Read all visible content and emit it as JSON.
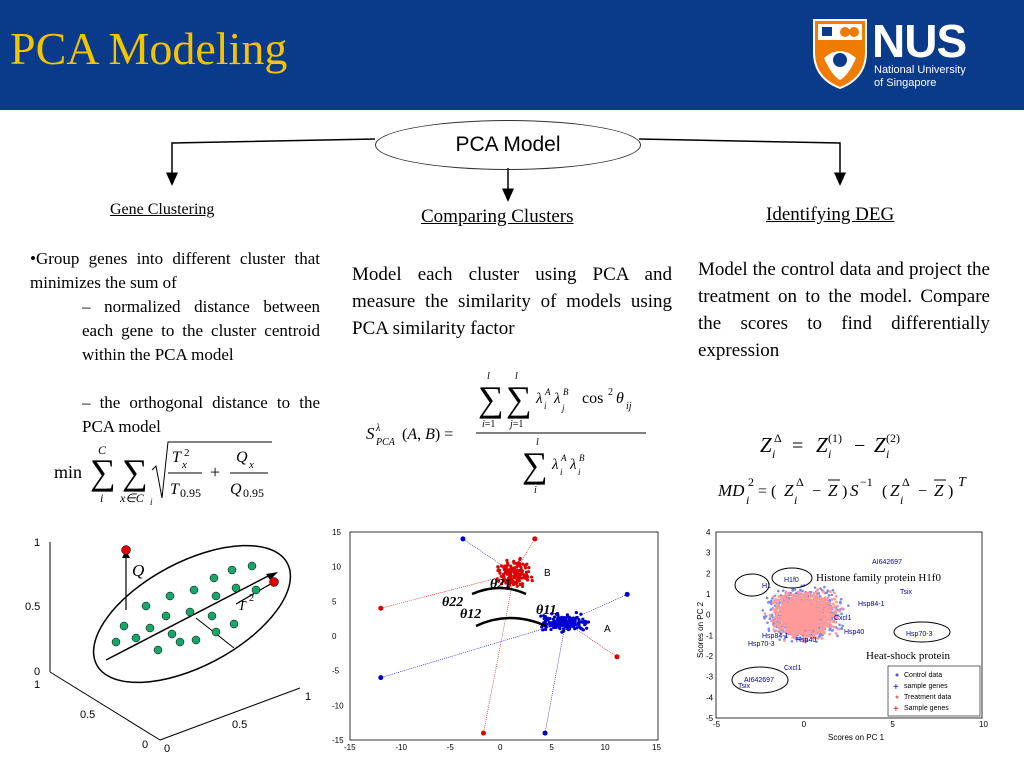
{
  "slide": {
    "title": "PCA Modeling",
    "logo": {
      "name": "NUS",
      "line1": "National University",
      "line2": "of Singapore"
    }
  },
  "center": {
    "label": "PCA Model"
  },
  "gene_clustering": {
    "heading": "Gene Clustering",
    "bullet": "•Group genes into different cluster that minimizes the sum of",
    "sub1": "– normalized distance between each gene to the cluster centroid within the PCA model",
    "sub2": "– the orthogonal distance to the PCA model"
  },
  "comparing_clusters": {
    "heading": "Comparing Clusters",
    "body": "Model each cluster using PCA and measure the similarity of models using PCA similarity factor"
  },
  "identifying_deg": {
    "heading": "Identifying DEG",
    "body": "Model the control data and project the treatment on to the model. Compare the scores to find differentially expression"
  },
  "left_plot": {
    "y_ticks": [
      "1",
      "0.5",
      "0"
    ],
    "x_ticks": [
      "1",
      "0.5",
      "0"
    ],
    "z_ticks": [
      "1",
      "0.5",
      "0"
    ],
    "q_label": "Q",
    "t_label": "T",
    "t_sup": "2"
  },
  "middle_plot": {
    "chart_data": {
      "type": "scatter",
      "xlim": [
        -15,
        15
      ],
      "ylim": [
        -15,
        15
      ],
      "x_ticks": [
        "-15",
        "-10",
        "-5",
        "0",
        "5",
        "10",
        "15"
      ],
      "y_ticks": [
        "15",
        "10",
        "5",
        "0",
        "-5",
        "-10",
        "-15"
      ],
      "cluster_labels": [
        "B",
        "A"
      ],
      "cluster_centers": {
        "B": [
          1,
          9
        ],
        "A": [
          6,
          2
        ]
      },
      "angle_labels": [
        "θ22",
        "θ12",
        "θ21",
        "θ11"
      ],
      "colors": {
        "B": "#dd0000",
        "A": "#0000cc"
      }
    }
  },
  "right_plot": {
    "chart_data": {
      "type": "scatter",
      "xlim": [
        -5,
        10
      ],
      "ylim": [
        -5,
        4
      ],
      "x_ticks": [
        "-5",
        "0",
        "5",
        "10"
      ],
      "y_ticks": [
        "4",
        "3",
        "2",
        "1",
        "0",
        "-1",
        "-2",
        "-3",
        "-4",
        "-5"
      ],
      "xlabel": "Scores on PC 1",
      "ylabel": "Scores on PC 2",
      "legend": [
        "Control data",
        "sample genes",
        "Treatment data",
        "Sample genes"
      ],
      "gene_labels": [
        "AI642697",
        "H1f0",
        "H1",
        "Tsix",
        "Hsp84-1",
        "Cxcl1",
        "Hsp40",
        "Hsp84-1",
        "Hsp70-3",
        "Hsp40",
        "Hsp70-3",
        "Cxcl1",
        "AI642697",
        "Tsix"
      ],
      "annotations": [
        "Histone family protein H1f0",
        "Heat-shock protein"
      ]
    }
  }
}
